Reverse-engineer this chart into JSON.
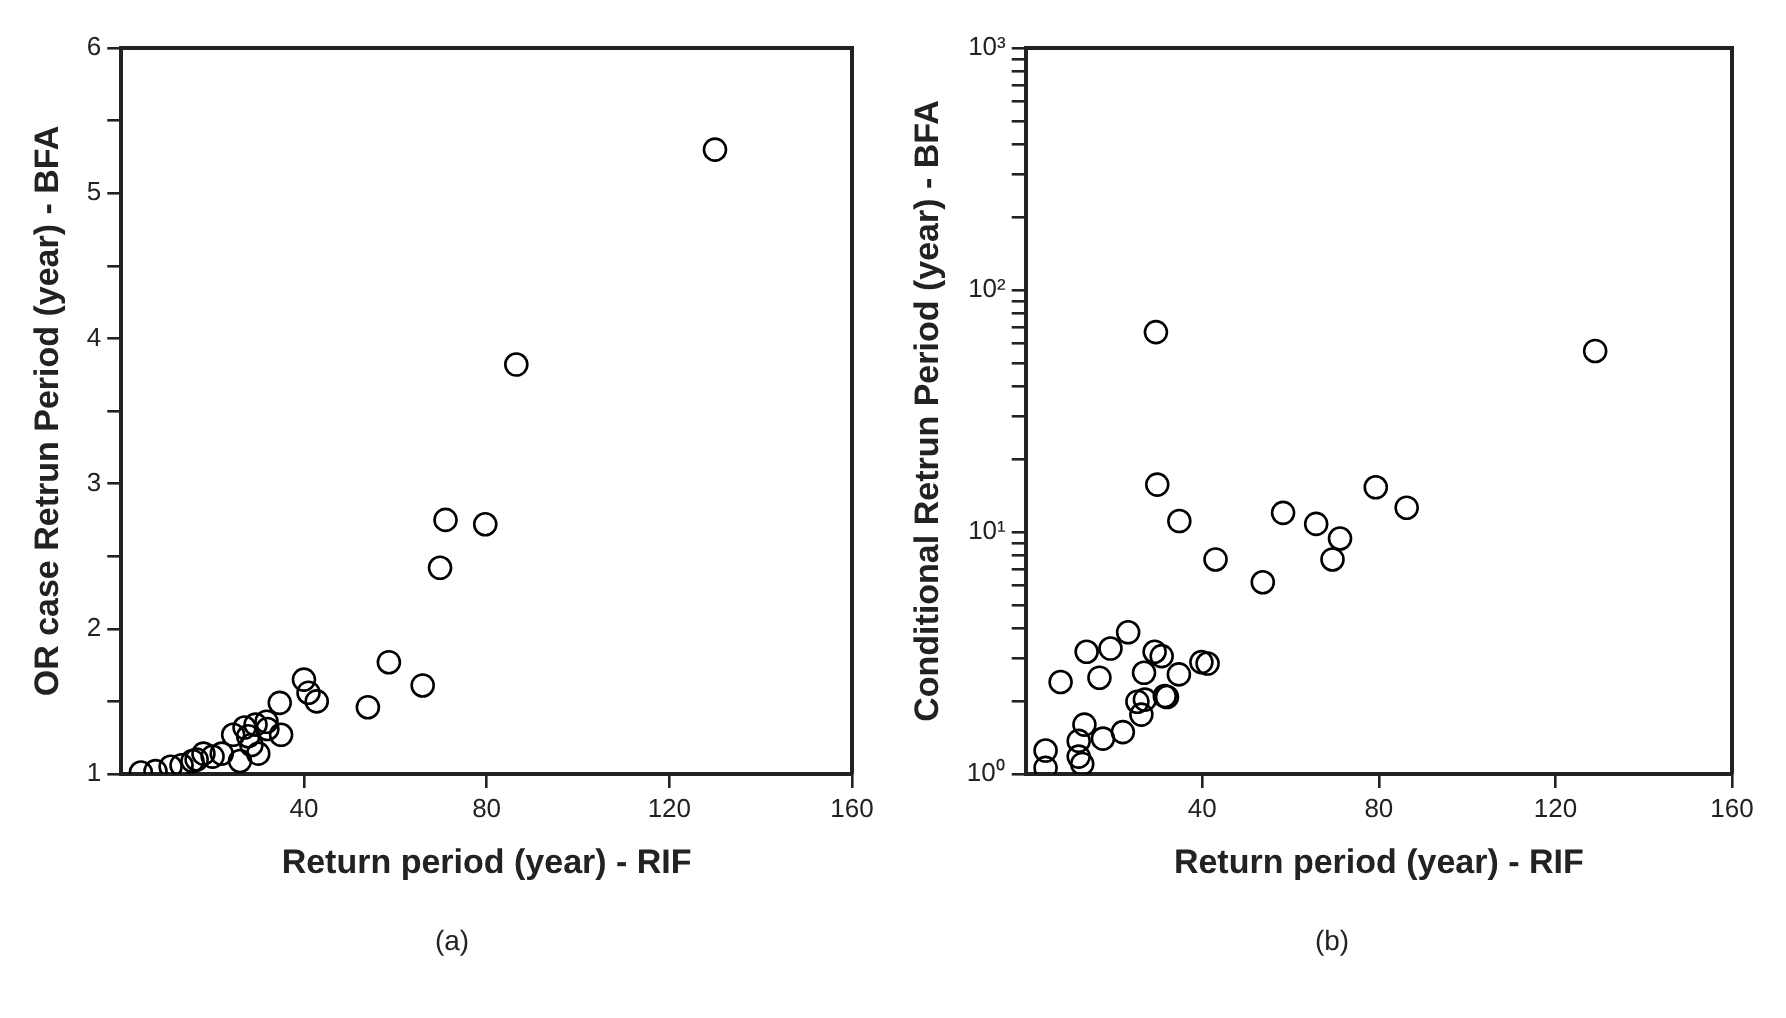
{
  "chart_data": [
    {
      "type": "scatter",
      "xlabel": "Return period (year) - RIF",
      "ylabel": "OR case Retrun Period (year) - BFA",
      "annotations": [
        "(a)"
      ],
      "marker": "circle",
      "grid": false,
      "legend": false,
      "xlim": [
        0,
        160
      ],
      "xticks": [
        40,
        80,
        120,
        160
      ],
      "ylim": [
        1,
        6
      ],
      "yticks": [
        1,
        {
          "value": 1.5,
          "label": null
        },
        2,
        {
          "value": 2.5,
          "label": null
        },
        3,
        {
          "value": 3.5,
          "label": null
        },
        4,
        {
          "value": 4.5,
          "label": null
        },
        5,
        {
          "value": 5.5,
          "label": null
        },
        6
      ],
      "series": [
        {
          "color": "#000000",
          "x": [
            130,
            86.5,
            71,
            79.7,
            69.8,
            58.6,
            66,
            54,
            40,
            41,
            42.8,
            34.7,
            35,
            31.8,
            29.4,
            27,
            24.5,
            4.3,
            7.5,
            10.8,
            13.2,
            15.6,
            18,
            22,
            26,
            30,
            27.8,
            20,
            28.5,
            32,
            16.5
          ],
          "values": [
            5.3,
            3.82,
            2.75,
            2.72,
            2.42,
            1.77,
            1.61,
            1.46,
            1.65,
            1.56,
            1.5,
            1.49,
            1.27,
            1.36,
            1.34,
            1.32,
            1.27,
            1.01,
            1.02,
            1.05,
            1.06,
            1.09,
            1.14,
            1.14,
            1.09,
            1.14,
            1.26,
            1.12,
            1.2,
            1.31,
            1.1
          ]
        }
      ]
    },
    {
      "type": "scatter",
      "xlabel": "Return period (year) - RIF",
      "ylabel": "Conditional Retrun Period (year) - BFA",
      "annotations": [
        "(b)"
      ],
      "marker": "circle",
      "grid": false,
      "legend": false,
      "log": "y",
      "xlim": [
        0,
        160
      ],
      "xticks": [
        40,
        80,
        120,
        160
      ],
      "ylim": [
        1,
        1000
      ],
      "yticks": [
        {
          "value": 1,
          "label": "10⁰"
        },
        {
          "value": 2,
          "label": null
        },
        {
          "value": 3,
          "label": null
        },
        {
          "value": 4,
          "label": null
        },
        {
          "value": 5,
          "label": null
        },
        {
          "value": 6,
          "label": null
        },
        {
          "value": 7,
          "label": null
        },
        {
          "value": 8,
          "label": null
        },
        {
          "value": 9,
          "label": null
        },
        {
          "value": 10,
          "label": "10¹"
        },
        {
          "value": 20,
          "label": null
        },
        {
          "value": 30,
          "label": null
        },
        {
          "value": 40,
          "label": null
        },
        {
          "value": 50,
          "label": null
        },
        {
          "value": 60,
          "label": null
        },
        {
          "value": 70,
          "label": null
        },
        {
          "value": 80,
          "label": null
        },
        {
          "value": 90,
          "label": null
        },
        {
          "value": 100,
          "label": "10²"
        },
        {
          "value": 200,
          "label": null
        },
        {
          "value": 300,
          "label": null
        },
        {
          "value": 400,
          "label": null
        },
        {
          "value": 500,
          "label": null
        },
        {
          "value": 600,
          "label": null
        },
        {
          "value": 700,
          "label": null
        },
        {
          "value": 800,
          "label": null
        },
        {
          "value": 900,
          "label": null
        },
        {
          "value": 1000,
          "label": "10³"
        }
      ],
      "series": [
        {
          "color": "#000000",
          "x": [
            29.5,
            129,
            29.8,
            34.8,
            43,
            53.7,
            58.3,
            65.8,
            71.2,
            69.5,
            79.3,
            86.3,
            23.2,
            13.8,
            19.2,
            7.9,
            16.7,
            29.2,
            30.8,
            26.8,
            34.7,
            39.8,
            41.2,
            31.5,
            25.3,
            27,
            4.5,
            4.5,
            13.3,
            12,
            12,
            12.8,
            17.5,
            22,
            26.2,
            32
          ],
          "values": [
            67,
            56,
            15.7,
            11.1,
            7.7,
            6.2,
            12,
            10.8,
            9.4,
            7.7,
            15.3,
            12.6,
            3.85,
            3.2,
            3.3,
            2.4,
            2.5,
            3.2,
            3.07,
            2.62,
            2.58,
            2.9,
            2.86,
            2.1,
            1.99,
            2.03,
            1.25,
            1.06,
            1.6,
            1.37,
            1.18,
            1.1,
            1.4,
            1.49,
            1.76,
            2.08
          ]
        }
      ]
    }
  ]
}
